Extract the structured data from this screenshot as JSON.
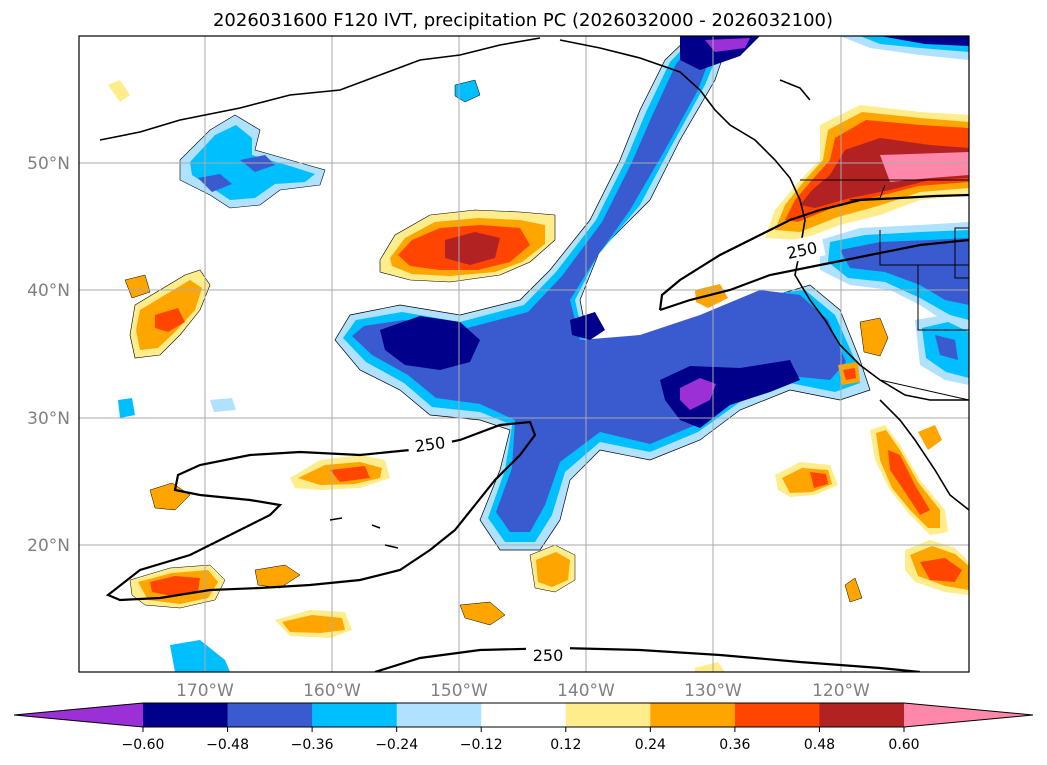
{
  "title": "2026031600 F120 IVT, precipitation PC (2026032000 - 2026032100)",
  "lat_labels": [
    "50°N",
    "40°N",
    "30°N",
    "20°N"
  ],
  "lon_labels": [
    "170°W",
    "160°W",
    "150°W",
    "140°W",
    "130°W",
    "120°W"
  ],
  "contour_labels": [
    "250",
    "250",
    "250"
  ],
  "colorbar": {
    "ticks": [
      "−0.60",
      "−0.48",
      "−0.36",
      "−0.24",
      "−0.12",
      "0.12",
      "0.24",
      "0.36",
      "0.48",
      "0.60"
    ],
    "colors": [
      "#9b30d6",
      "#00008b",
      "#3a5bd0",
      "#00bfff",
      "#b0e2ff",
      "#ffffff",
      "#ffec8b",
      "#ffa500",
      "#ff4500",
      "#b22222",
      "#ff88aa"
    ]
  },
  "palette": {
    "purple": "#9b30d6",
    "navy": "#00008b",
    "blue": "#3a5bd0",
    "cyan": "#00bfff",
    "lightblue": "#b0e2ff",
    "yellow": "#ffec8b",
    "orange": "#ffa500",
    "redorange": "#ff4500",
    "firebrick": "#b22222",
    "pink": "#ff88aa"
  }
}
